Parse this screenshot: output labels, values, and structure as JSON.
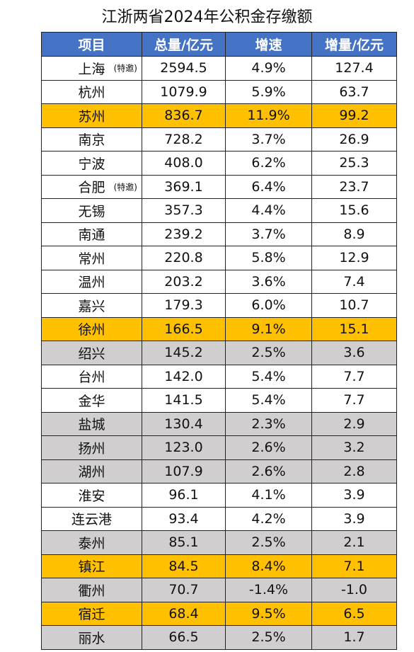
{
  "title": "江浙两省2024年公积金存缴额",
  "table": {
    "header": [
      "项目",
      "总量/亿元",
      "增速",
      "增量/亿元"
    ],
    "rows": [
      {
        "name": "上海",
        "note": "(特邀)",
        "total": "2594.5",
        "growth": "4.9%",
        "increment": "127.4",
        "fill": "#ffffff"
      },
      {
        "name": "杭州",
        "total": "1079.9",
        "growth": "5.9%",
        "increment": "63.7",
        "fill": "#ffffff"
      },
      {
        "name": "苏州",
        "total": "836.7",
        "growth": "11.9%",
        "increment": "99.2",
        "fill": "#ffc000"
      },
      {
        "name": "南京",
        "total": "728.2",
        "growth": "3.7%",
        "increment": "26.9",
        "fill": "#ffffff"
      },
      {
        "name": "宁波",
        "total": "408.0",
        "growth": "6.2%",
        "increment": "25.3",
        "fill": "#ffffff"
      },
      {
        "name": "合肥",
        "note": "(特邀)",
        "total": "369.1",
        "growth": "6.4%",
        "increment": "23.7",
        "fill": "#ffffff"
      },
      {
        "name": "无锡",
        "total": "357.3",
        "growth": "4.4%",
        "increment": "15.6",
        "fill": "#ffffff"
      },
      {
        "name": "南通",
        "total": "239.2",
        "growth": "3.7%",
        "increment": "8.9",
        "fill": "#ffffff"
      },
      {
        "name": "常州",
        "total": "220.8",
        "growth": "5.8%",
        "increment": "12.9",
        "fill": "#ffffff"
      },
      {
        "name": "温州",
        "total": "203.2",
        "growth": "3.6%",
        "increment": "7.4",
        "fill": "#ffffff"
      },
      {
        "name": "嘉兴",
        "total": "179.3",
        "growth": "6.0%",
        "increment": "10.7",
        "fill": "#ffffff"
      },
      {
        "name": "徐州",
        "total": "166.5",
        "growth": "9.1%",
        "increment": "15.1",
        "fill": "#ffc000"
      },
      {
        "name": "绍兴",
        "total": "145.2",
        "growth": "2.5%",
        "increment": "3.6",
        "fill": "#d0cece"
      },
      {
        "name": "台州",
        "total": "142.0",
        "growth": "5.4%",
        "increment": "7.7",
        "fill": "#ffffff"
      },
      {
        "name": "金华",
        "total": "141.5",
        "growth": "5.4%",
        "increment": "7.7",
        "fill": "#ffffff"
      },
      {
        "name": "盐城",
        "total": "130.4",
        "growth": "2.3%",
        "increment": "2.9",
        "fill": "#d0cece"
      },
      {
        "name": "扬州",
        "total": "123.0",
        "growth": "2.6%",
        "increment": "3.2",
        "fill": "#d0cece"
      },
      {
        "name": "湖州",
        "total": "107.9",
        "growth": "2.6%",
        "increment": "2.8",
        "fill": "#d0cece"
      },
      {
        "name": "淮安",
        "total": "96.1",
        "growth": "4.1%",
        "increment": "3.9",
        "fill": "#ffffff"
      },
      {
        "name": "连云港",
        "total": "93.4",
        "growth": "4.2%",
        "increment": "3.9",
        "fill": "#ffffff"
      },
      {
        "name": "泰州",
        "total": "85.1",
        "growth": "2.5%",
        "increment": "2.1",
        "fill": "#d0cece"
      },
      {
        "name": "镇江",
        "total": "84.5",
        "growth": "8.4%",
        "increment": "7.1",
        "fill": "#ffc000"
      },
      {
        "name": "衢州",
        "total": "70.7",
        "growth": "-1.4%",
        "increment": "-1.0",
        "fill": "#d0cece"
      },
      {
        "name": "宿迁",
        "total": "68.4",
        "growth": "9.5%",
        "increment": "6.5",
        "fill": "#ffc000"
      },
      {
        "name": "丽水",
        "total": "66.5",
        "growth": "2.5%",
        "increment": "1.7",
        "fill": "#d0cece"
      }
    ]
  }
}
